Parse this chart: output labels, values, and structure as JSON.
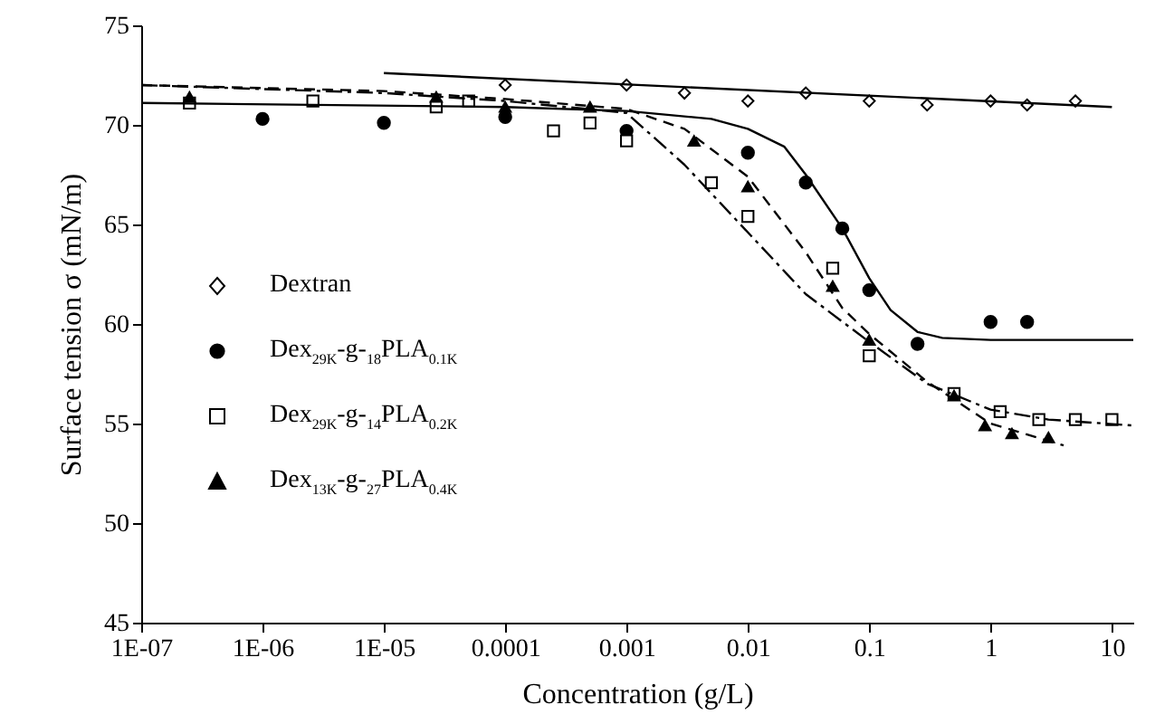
{
  "chart_data": {
    "type": "scatter",
    "xlabel": "Concentration (g/L)",
    "ylabel": "Surface tension σ (mN/m)",
    "log": "x",
    "grid": false,
    "legend": "left",
    "xlim": [
      1e-07,
      15
    ],
    "xticks": [
      {
        "value": 1e-07,
        "label": "1E-07"
      },
      {
        "value": 1e-06,
        "label": "1E-06"
      },
      {
        "value": 1e-05,
        "label": "1E-05"
      },
      0.0001,
      0.001,
      0.01,
      0.1,
      1,
      10
    ],
    "ylim": [
      45,
      75
    ],
    "yticks": [
      45,
      50,
      55,
      60,
      65,
      70,
      75
    ],
    "series": [
      {
        "name": "Dextran",
        "type": "scatter",
        "marker": "diamond",
        "color": "#ffffff",
        "x": [
          0.0001,
          0.001,
          0.003,
          0.01,
          0.03,
          0.1,
          0.3,
          1,
          2,
          5
        ],
        "values": [
          72.0,
          72.0,
          71.6,
          71.2,
          71.6,
          71.2,
          71.0,
          71.2,
          71.0,
          71.2
        ]
      },
      {
        "name": "Dex$_{29K}$-g-$_{18}$PLA$_{0.1K}$",
        "type": "scatter",
        "marker": "circle",
        "color": "#000000",
        "x": [
          1e-06,
          1e-05,
          0.0001,
          0.001,
          0.01,
          0.03,
          0.06,
          0.1,
          0.25,
          1,
          2
        ],
        "values": [
          70.3,
          70.1,
          70.4,
          69.7,
          68.6,
          67.1,
          64.8,
          61.7,
          59.0,
          60.1,
          60.1
        ]
      },
      {
        "name": "Dex$_{29K}$-g-$_{14}$PLA$_{0.2K}$",
        "type": "scatter",
        "marker": "square",
        "color": "#ffffff",
        "x": [
          2.5e-07,
          2.6e-06,
          2.7e-05,
          5e-05,
          0.00025,
          0.0005,
          0.001,
          0.005,
          0.01,
          0.05,
          0.1,
          0.5,
          1.2,
          2.5,
          5,
          10
        ],
        "values": [
          71.1,
          71.2,
          70.9,
          71.2,
          69.7,
          70.1,
          69.2,
          67.1,
          65.4,
          62.8,
          58.4,
          56.5,
          55.6,
          55.2,
          55.2,
          55.2
        ]
      },
      {
        "name": "Dex$_{13K}$-g-$_{27}$PLA$_{0.4K}$",
        "type": "scatter",
        "marker": "triangle",
        "color": "#000000",
        "x": [
          2.5e-07,
          2.7e-05,
          0.0001,
          0.0005,
          0.0036,
          0.01,
          0.05,
          0.1,
          0.5,
          0.9,
          1.5,
          3
        ],
        "values": [
          71.4,
          71.4,
          70.9,
          70.9,
          69.2,
          66.9,
          61.9,
          59.2,
          56.4,
          54.9,
          54.5,
          54.3
        ]
      },
      {
        "type": "line",
        "line_style": "solid",
        "color": "#000000",
        "x": [
          1e-05,
          10
        ],
        "values": [
          72.6,
          70.9
        ]
      },
      {
        "type": "line",
        "line_style": "solid",
        "color": "#000000",
        "x": [
          1e-07,
          0.0001,
          0.001,
          0.005,
          0.01,
          0.02,
          0.03,
          0.06,
          0.1,
          0.15,
          0.25,
          0.4,
          1,
          15
        ],
        "values": [
          71.1,
          70.9,
          70.7,
          70.3,
          69.8,
          68.9,
          67.5,
          64.8,
          62.3,
          60.7,
          59.6,
          59.3,
          59.2,
          59.2
        ]
      },
      {
        "type": "line",
        "line_style": "dashdot",
        "color": "#000000",
        "x": [
          1e-07,
          1e-05,
          0.0001,
          0.001,
          0.003,
          0.01,
          0.03,
          0.1,
          0.3,
          1,
          3,
          15
        ],
        "values": [
          72.0,
          71.6,
          71.2,
          70.6,
          68.0,
          64.6,
          61.5,
          59.1,
          57.0,
          55.7,
          55.2,
          54.9
        ]
      },
      {
        "type": "line",
        "line_style": "dashed",
        "color": "#000000",
        "x": [
          1e-07,
          1e-05,
          0.0001,
          0.001,
          0.003,
          0.01,
          0.03,
          0.06,
          0.1,
          0.3,
          1,
          4
        ],
        "values": [
          72.0,
          71.7,
          71.3,
          70.8,
          69.8,
          67.4,
          63.6,
          60.8,
          59.5,
          57.1,
          55.0,
          53.9
        ]
      }
    ]
  }
}
